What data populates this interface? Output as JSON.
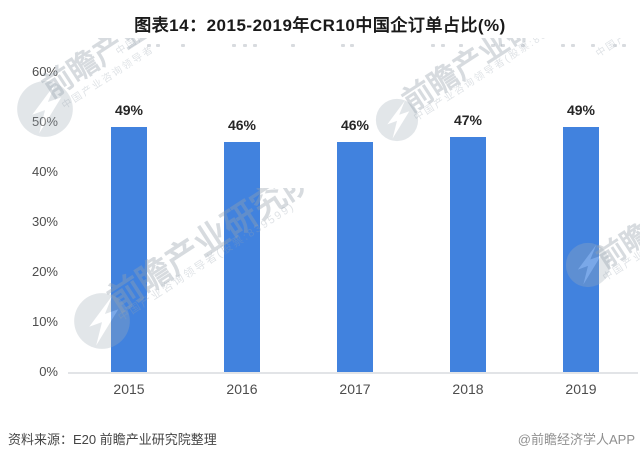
{
  "chart_data": {
    "type": "bar",
    "title": "图表14：2015-2019年CR10中国企订单占比(%)",
    "categories": [
      "2015",
      "2016",
      "2017",
      "2018",
      "2019"
    ],
    "values": [
      49,
      46,
      46,
      47,
      49
    ],
    "value_labels": [
      "49%",
      "46%",
      "46%",
      "47%",
      "49%"
    ],
    "xlabel": "",
    "ylabel": "",
    "ylim": [
      0,
      60
    ],
    "ytick_step": 10,
    "yticks": [
      "0%",
      "10%",
      "20%",
      "30%",
      "40%",
      "50%",
      "60%"
    ],
    "grid": false,
    "legend": "none",
    "bar_color": "#4182de"
  },
  "footer": {
    "source": "资料来源：E20 前瞻产业研究院整理",
    "credit": "@前瞻经济学人APP"
  },
  "watermark": {
    "brand": "前瞻产业研究院",
    "subtext": "中国产业咨询领导者(股票:839599)",
    "logo": "qianzhan-globe-logo"
  },
  "colors": {
    "bar": "#4182de",
    "axis_line": "#e2e4e7",
    "title_text": "#1a1a1a",
    "watermark": "#97a3ae"
  }
}
